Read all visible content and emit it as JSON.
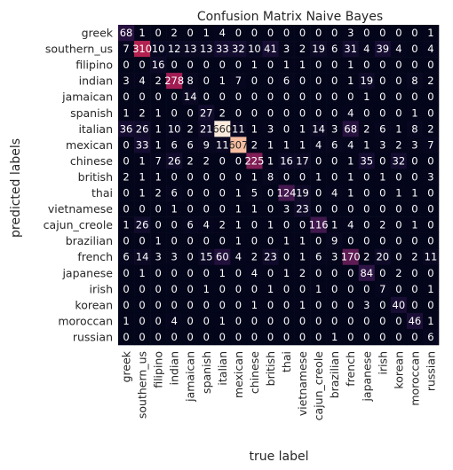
{
  "chart_data": {
    "type": "heatmap",
    "title": "Confusion Matrix Naive Bayes",
    "xlabel": "true label",
    "ylabel": "predicted labels",
    "labels": [
      "greek",
      "southern_us",
      "filipino",
      "indian",
      "jamaican",
      "spanish",
      "italian",
      "mexican",
      "chinese",
      "british",
      "thai",
      "vietnamese",
      "cajun_creole",
      "brazilian",
      "french",
      "japanese",
      "irish",
      "korean",
      "moroccan",
      "russian"
    ],
    "matrix": [
      [
        68,
        1,
        0,
        2,
        0,
        1,
        4,
        0,
        0,
        0,
        0,
        0,
        0,
        0,
        3,
        0,
        0,
        0,
        0,
        1
      ],
      [
        7,
        310,
        10,
        12,
        13,
        13,
        33,
        32,
        10,
        41,
        3,
        2,
        19,
        6,
        31,
        4,
        39,
        4,
        0,
        4
      ],
      [
        0,
        0,
        16,
        0,
        0,
        0,
        0,
        0,
        1,
        0,
        1,
        1,
        0,
        0,
        1,
        0,
        0,
        0,
        0,
        0
      ],
      [
        3,
        4,
        2,
        278,
        8,
        0,
        1,
        7,
        0,
        0,
        6,
        0,
        0,
        0,
        1,
        19,
        0,
        0,
        8,
        2
      ],
      [
        0,
        0,
        0,
        0,
        14,
        0,
        0,
        0,
        0,
        0,
        0,
        0,
        0,
        0,
        0,
        1,
        0,
        0,
        0,
        0
      ],
      [
        1,
        2,
        1,
        0,
        0,
        27,
        2,
        0,
        0,
        0,
        0,
        0,
        0,
        0,
        4,
        0,
        0,
        0,
        1,
        0
      ],
      [
        36,
        26,
        1,
        10,
        2,
        21,
        660,
        11,
        1,
        3,
        0,
        1,
        14,
        3,
        68,
        2,
        6,
        1,
        8,
        2
      ],
      [
        0,
        33,
        1,
        6,
        6,
        9,
        11,
        607,
        2,
        1,
        1,
        1,
        4,
        6,
        4,
        1,
        3,
        2,
        3,
        7
      ],
      [
        0,
        1,
        7,
        26,
        2,
        2,
        0,
        0,
        225,
        1,
        16,
        17,
        0,
        0,
        1,
        35,
        0,
        32,
        0,
        0
      ],
      [
        2,
        1,
        1,
        0,
        0,
        0,
        0,
        0,
        1,
        8,
        0,
        0,
        1,
        0,
        1,
        0,
        1,
        0,
        0,
        3
      ],
      [
        0,
        1,
        2,
        6,
        0,
        0,
        0,
        1,
        5,
        0,
        124,
        19,
        0,
        4,
        1,
        0,
        0,
        1,
        1,
        0
      ],
      [
        0,
        0,
        0,
        1,
        0,
        0,
        0,
        1,
        1,
        0,
        3,
        23,
        0,
        0,
        0,
        0,
        0,
        0,
        0,
        0
      ],
      [
        1,
        26,
        0,
        0,
        6,
        4,
        2,
        1,
        0,
        1,
        0,
        0,
        116,
        1,
        4,
        0,
        2,
        0,
        1,
        0
      ],
      [
        0,
        0,
        1,
        0,
        0,
        0,
        0,
        1,
        0,
        0,
        1,
        1,
        0,
        9,
        0,
        0,
        0,
        0,
        0,
        0
      ],
      [
        6,
        14,
        3,
        3,
        0,
        15,
        60,
        4,
        2,
        23,
        0,
        1,
        6,
        3,
        170,
        2,
        20,
        0,
        2,
        11
      ],
      [
        0,
        1,
        0,
        0,
        0,
        0,
        1,
        0,
        4,
        0,
        1,
        2,
        0,
        0,
        0,
        84,
        0,
        2,
        0,
        0
      ],
      [
        0,
        0,
        0,
        0,
        0,
        1,
        0,
        0,
        0,
        1,
        0,
        0,
        1,
        0,
        0,
        0,
        7,
        0,
        0,
        1
      ],
      [
        0,
        0,
        0,
        0,
        0,
        0,
        0,
        0,
        1,
        0,
        0,
        1,
        0,
        0,
        0,
        3,
        0,
        40,
        0,
        0
      ],
      [
        1,
        0,
        0,
        4,
        0,
        0,
        1,
        0,
        0,
        0,
        0,
        0,
        0,
        0,
        0,
        0,
        0,
        0,
        46,
        1
      ],
      [
        0,
        0,
        0,
        0,
        0,
        0,
        0,
        0,
        0,
        0,
        0,
        0,
        0,
        1,
        0,
        0,
        0,
        0,
        0,
        6
      ]
    ],
    "vmin": 0,
    "vmax": 660,
    "colormap": "rocket",
    "grid": false,
    "colorbar": false
  }
}
